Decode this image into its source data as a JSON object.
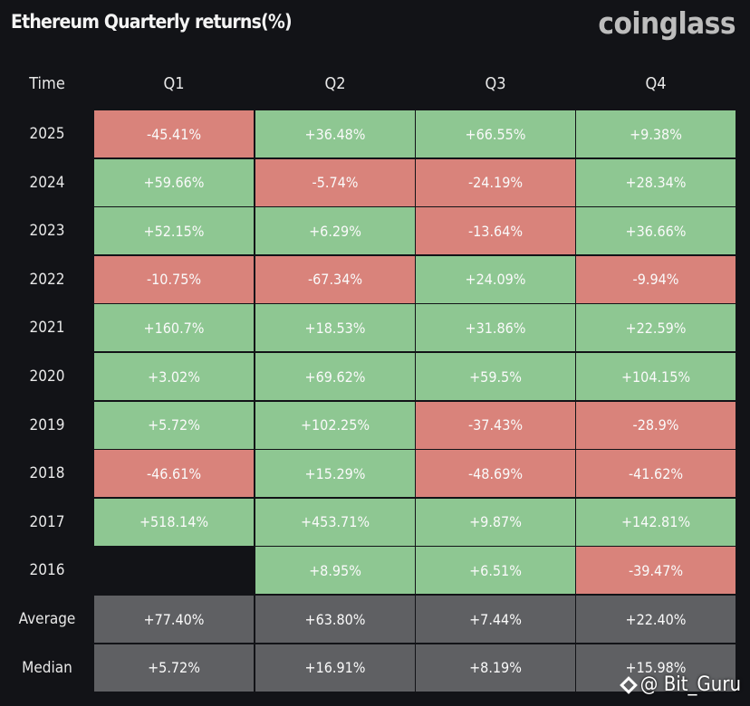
{
  "colors": {
    "positive": "#8ec792",
    "negative": "#d9837b",
    "summary": "#5f6063",
    "background": "#121317"
  },
  "watermark": "@ Bit_Guru",
  "chart_data": {
    "type": "table",
    "title": "Ethereum Quarterly returns(%)",
    "brand": "coinglass",
    "corner_label": "Time",
    "columns": [
      "Q1",
      "Q2",
      "Q3",
      "Q4"
    ],
    "rows": [
      {
        "label": "2025",
        "values": [
          "-45.41%",
          "+36.48%",
          "+66.55%",
          "+9.38%"
        ]
      },
      {
        "label": "2024",
        "values": [
          "+59.66%",
          "-5.74%",
          "-24.19%",
          "+28.34%"
        ]
      },
      {
        "label": "2023",
        "values": [
          "+52.15%",
          "+6.29%",
          "-13.64%",
          "+36.66%"
        ]
      },
      {
        "label": "2022",
        "values": [
          "-10.75%",
          "-67.34%",
          "+24.09%",
          "-9.94%"
        ]
      },
      {
        "label": "2021",
        "values": [
          "+160.7%",
          "+18.53%",
          "+31.86%",
          "+22.59%"
        ]
      },
      {
        "label": "2020",
        "values": [
          "+3.02%",
          "+69.62%",
          "+59.5%",
          "+104.15%"
        ]
      },
      {
        "label": "2019",
        "values": [
          "+5.72%",
          "+102.25%",
          "-37.43%",
          "-28.9%"
        ]
      },
      {
        "label": "2018",
        "values": [
          "-46.61%",
          "+15.29%",
          "-48.69%",
          "-41.62%"
        ]
      },
      {
        "label": "2017",
        "values": [
          "+518.14%",
          "+453.71%",
          "+9.87%",
          "+142.81%"
        ]
      },
      {
        "label": "2016",
        "values": [
          null,
          "+8.95%",
          "+6.51%",
          "-39.47%"
        ]
      }
    ],
    "summary_rows": [
      {
        "label": "Average",
        "values": [
          "+77.40%",
          "+63.80%",
          "+7.44%",
          "+22.40%"
        ]
      },
      {
        "label": "Median",
        "values": [
          "+5.72%",
          "+16.91%",
          "+8.19%",
          "+15.98%"
        ]
      }
    ]
  }
}
